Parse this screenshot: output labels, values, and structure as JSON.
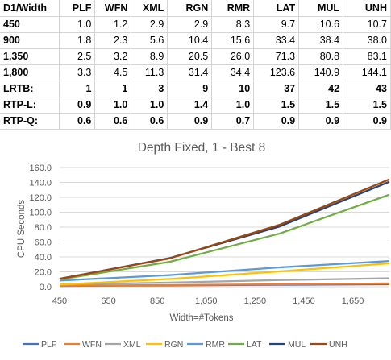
{
  "table": {
    "header": [
      "D1/Width",
      "PLF",
      "WFN",
      "XML",
      "RGN",
      "RMR",
      "LAT",
      "MUL",
      "UNH"
    ],
    "rows": [
      {
        "label": "450",
        "bold": false,
        "cells": [
          "1.0",
          "1.2",
          "2.9",
          "2.9",
          "8.3",
          "9.7",
          "10.6",
          "10.7"
        ]
      },
      {
        "label": "900",
        "bold": false,
        "cells": [
          "1.8",
          "2.3",
          "5.6",
          "10.4",
          "15.6",
          "33.4",
          "38.4",
          "38.0"
        ]
      },
      {
        "label": "1,350",
        "bold": false,
        "cells": [
          "2.5",
          "3.2",
          "8.9",
          "20.5",
          "26.0",
          "71.3",
          "80.8",
          "83.1"
        ]
      },
      {
        "label": "1,800",
        "bold": false,
        "cells": [
          "3.3",
          "4.5",
          "11.3",
          "31.4",
          "34.4",
          "123.6",
          "140.9",
          "144.1"
        ]
      },
      {
        "label": "LRTB:",
        "bold": true,
        "cells": [
          "1",
          "1",
          "3",
          "9",
          "10",
          "37",
          "42",
          "43"
        ]
      },
      {
        "label": "RTP-L:",
        "bold": true,
        "cells": [
          "0.9",
          "1.0",
          "1.0",
          "1.4",
          "1.0",
          "1.5",
          "1.5",
          "1.5"
        ]
      },
      {
        "label": "RTP-Q:",
        "bold": true,
        "cells": [
          "0.6",
          "0.6",
          "0.6",
          "0.9",
          "0.7",
          "0.9",
          "0.9",
          "0.9"
        ]
      }
    ]
  },
  "chart_data": {
    "type": "line",
    "title": "Depth Fixed, 1 - Best 8",
    "xlabel": "Width=#Tokens",
    "ylabel": "CPU Seconds",
    "x": [
      450,
      900,
      1350,
      1800
    ],
    "xlim": [
      450,
      1800
    ],
    "xticks": [
      450,
      650,
      850,
      1050,
      1250,
      1450,
      1650
    ],
    "xtick_labels": [
      "450",
      "650",
      "850",
      "1,050",
      "1,250",
      "1,450",
      "1,650"
    ],
    "ylim": [
      0,
      160
    ],
    "yticks": [
      0,
      20,
      40,
      60,
      80,
      100,
      120,
      140,
      160
    ],
    "ytick_labels": [
      "0.0",
      "20.0",
      "40.0",
      "60.0",
      "80.0",
      "100.0",
      "120.0",
      "140.0",
      "160.0"
    ],
    "grid": true,
    "legend": "bottom",
    "series": [
      {
        "name": "PLF",
        "color": "#4472C4",
        "values": [
          1.0,
          1.8,
          2.5,
          3.3
        ]
      },
      {
        "name": "WFN",
        "color": "#ED7D31",
        "values": [
          1.2,
          2.3,
          3.2,
          4.5
        ]
      },
      {
        "name": "XML",
        "color": "#A5A5A5",
        "values": [
          2.9,
          5.6,
          8.9,
          11.3
        ]
      },
      {
        "name": "RGN",
        "color": "#FFC000",
        "values": [
          2.9,
          10.4,
          20.5,
          31.4
        ]
      },
      {
        "name": "RMR",
        "color": "#5B9BD5",
        "values": [
          8.3,
          15.6,
          26.0,
          34.4
        ]
      },
      {
        "name": "LAT",
        "color": "#70AD47",
        "values": [
          9.7,
          33.4,
          71.3,
          123.6
        ]
      },
      {
        "name": "MUL",
        "color": "#264478",
        "values": [
          10.6,
          38.4,
          80.8,
          140.9
        ]
      },
      {
        "name": "UNH",
        "color": "#9E480E",
        "values": [
          10.7,
          38.0,
          83.1,
          144.1
        ]
      }
    ]
  }
}
